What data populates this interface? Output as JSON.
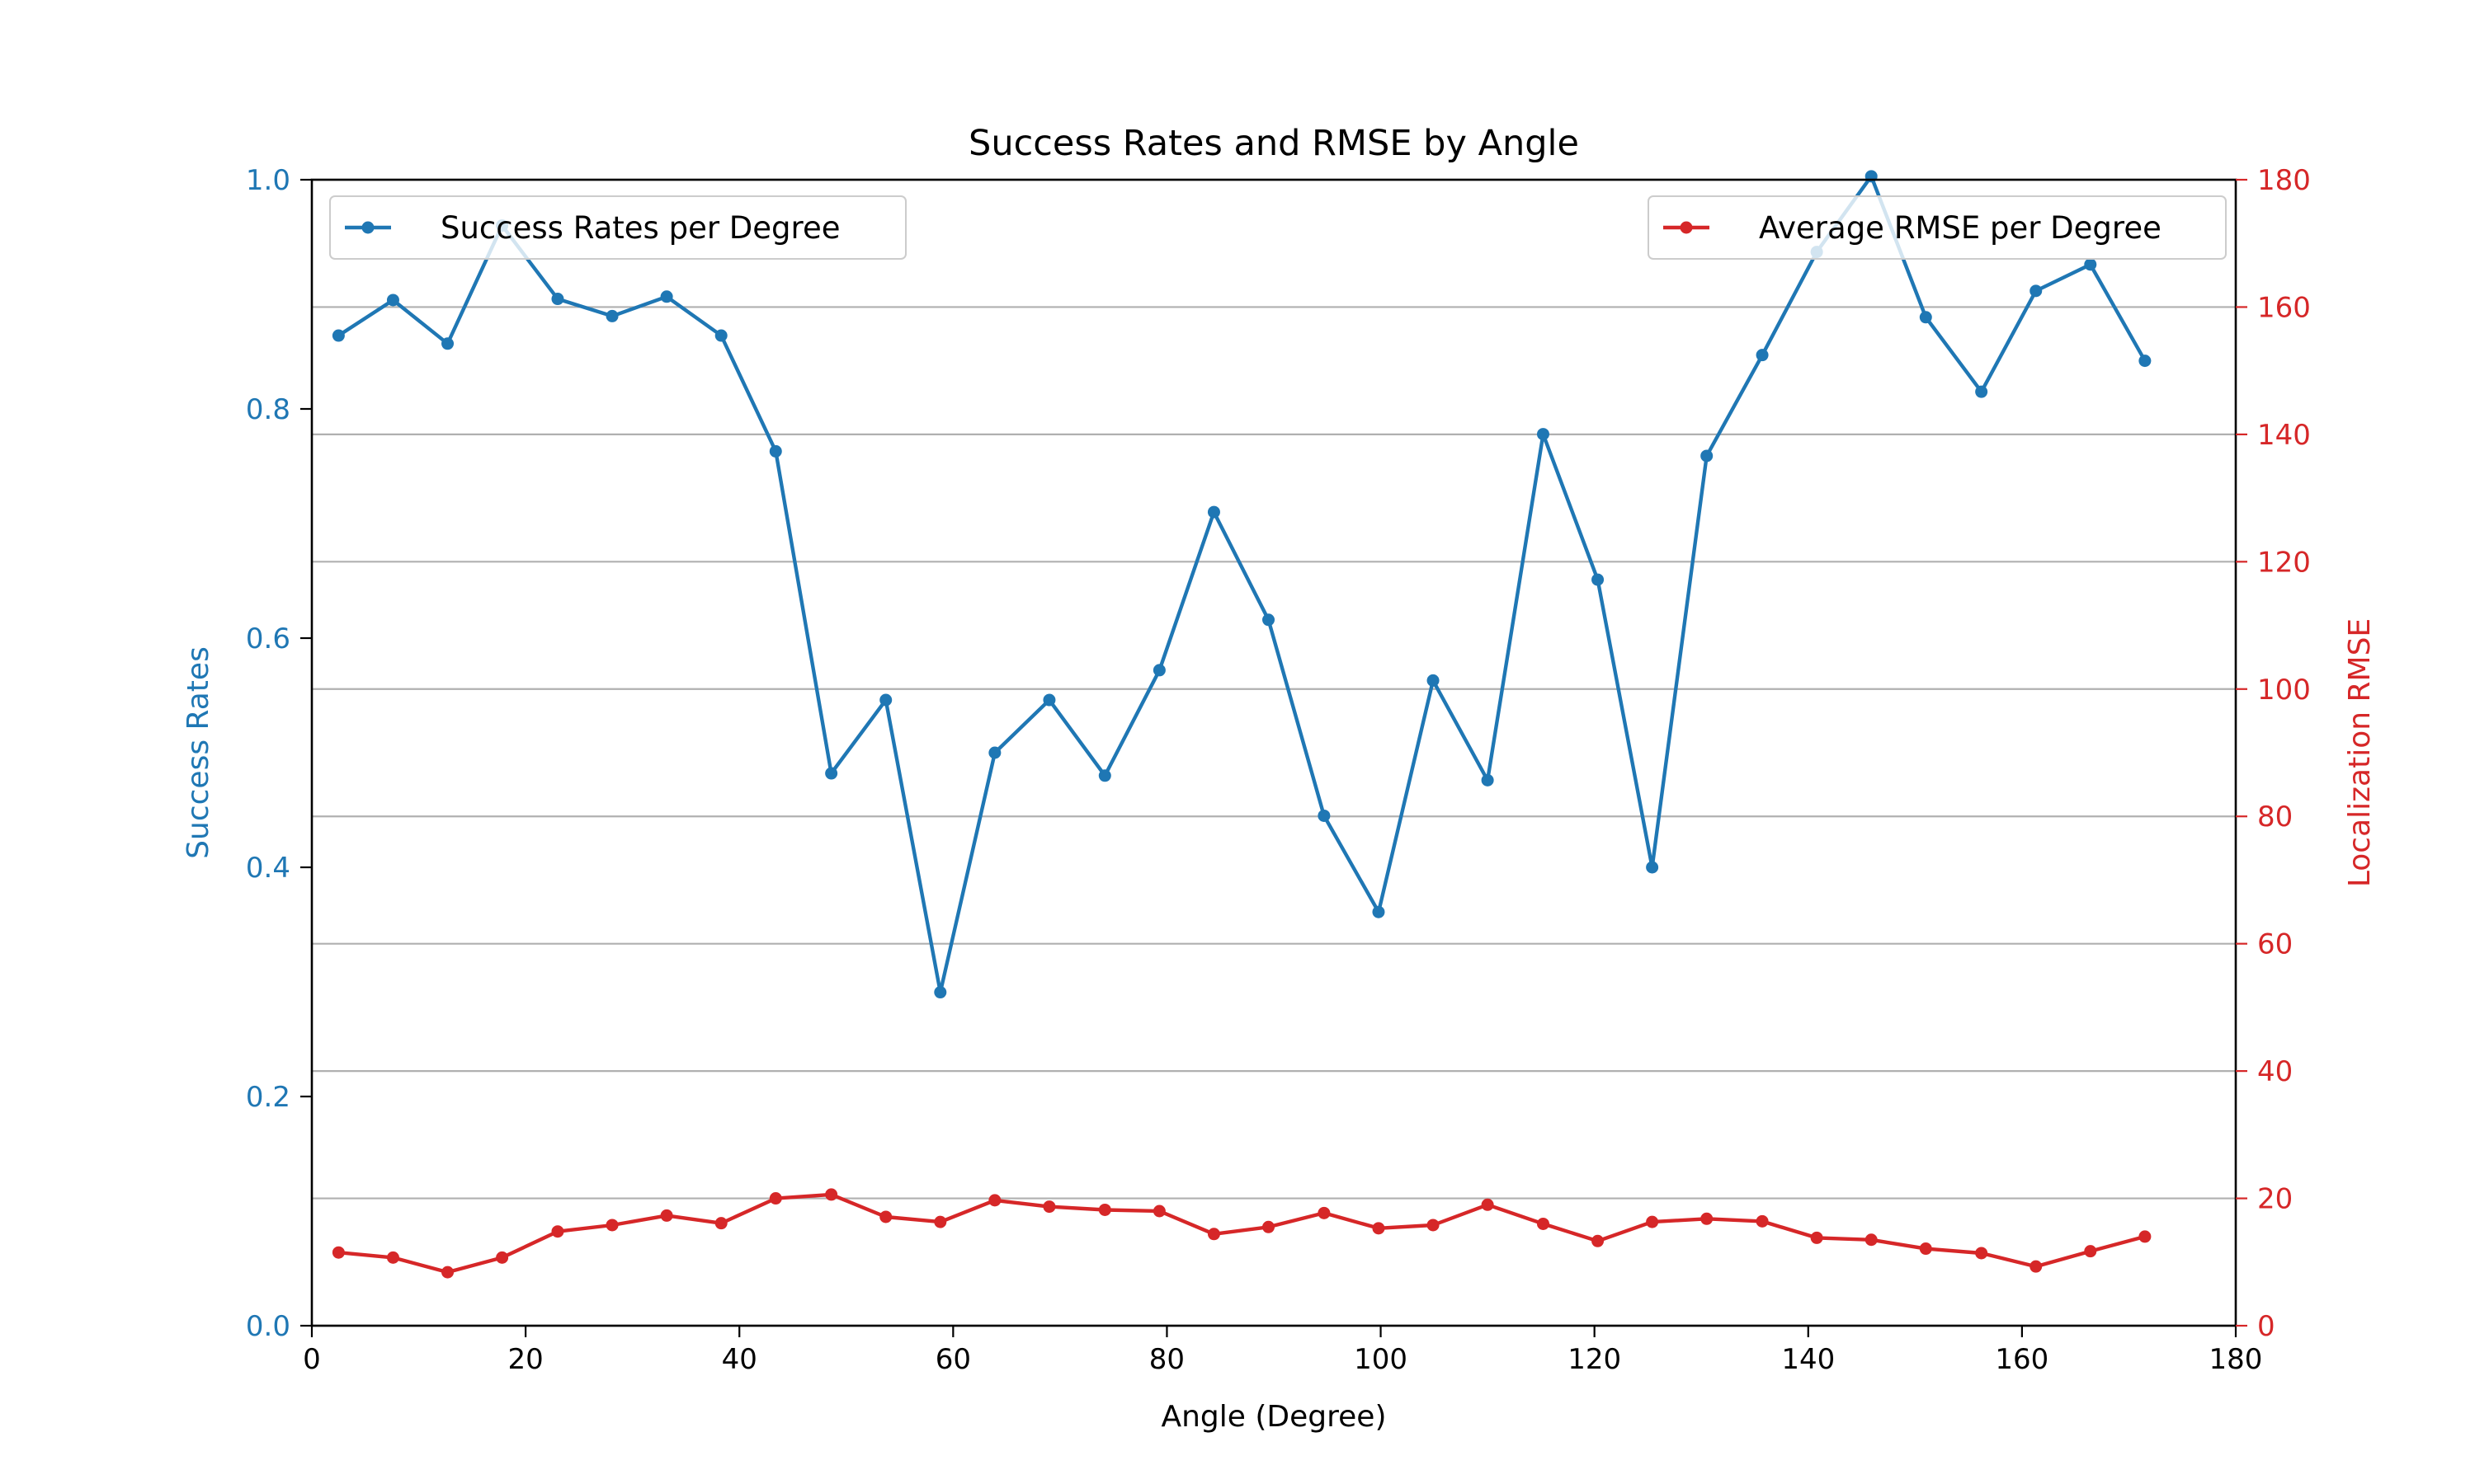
{
  "chart_data": {
    "type": "line",
    "title": "Success Rates and RMSE by Angle",
    "xlabel": "Angle (Degree)",
    "ylabel_left": "Success Rates",
    "ylabel_right": "Localization RMSE",
    "xlim": [
      0,
      180
    ],
    "ylim_left": [
      0,
      1
    ],
    "ylim_right": [
      0,
      180
    ],
    "x_ticks": [
      "0",
      "20",
      "40",
      "60",
      "80",
      "100",
      "120",
      "140",
      "160",
      "180"
    ],
    "y_ticks_left": [
      "0.0",
      "0.2",
      "0.4",
      "0.6",
      "0.8",
      "1.0"
    ],
    "y_ticks_right": [
      "0",
      "20",
      "40",
      "60",
      "80",
      "100",
      "120",
      "140",
      "160",
      "180"
    ],
    "grid": "horizontal (right axis)",
    "x": [
      2.5,
      7.6,
      12.7,
      17.8,
      23.0,
      28.1,
      33.2,
      38.3,
      43.4,
      48.6,
      53.7,
      58.8,
      63.9,
      69.0,
      74.2,
      79.3,
      84.4,
      89.5,
      94.7,
      99.8,
      104.9,
      110.0,
      115.2,
      120.3,
      125.4,
      130.5,
      135.7,
      140.8,
      145.9,
      151.0,
      156.2,
      161.3,
      166.4,
      171.5
    ],
    "series": [
      {
        "name": "Success Rates per Degree",
        "axis": "left",
        "color": "#1f77b4",
        "values": [
          0.864,
          0.895,
          0.857,
          0.96,
          0.896,
          0.881,
          0.898,
          0.864,
          0.763,
          0.482,
          0.546,
          0.291,
          0.5,
          0.546,
          0.48,
          0.572,
          0.71,
          0.616,
          0.445,
          0.361,
          0.563,
          0.476,
          0.778,
          0.651,
          0.4,
          0.759,
          0.847,
          0.937,
          1.003,
          0.88,
          0.815,
          0.903,
          0.926,
          0.842
        ]
      },
      {
        "name": "Average RMSE per Degree",
        "axis": "right",
        "color": "#d62728",
        "values": [
          11.5,
          10.7,
          8.4,
          10.7,
          14.8,
          15.8,
          17.3,
          16.1,
          20.0,
          20.6,
          17.1,
          16.3,
          19.7,
          18.7,
          18.2,
          18.0,
          14.4,
          15.5,
          17.7,
          15.3,
          15.8,
          19.0,
          16.0,
          13.3,
          16.3,
          16.8,
          16.4,
          13.8,
          13.5,
          12.1,
          11.4,
          9.3,
          11.7,
          14.0
        ]
      }
    ],
    "legend_placement": [
      "upper left",
      "upper right"
    ],
    "colors": {
      "left_axis": "#1f77b4",
      "right_axis": "#d62728",
      "grid": "#b0b0b0"
    }
  }
}
